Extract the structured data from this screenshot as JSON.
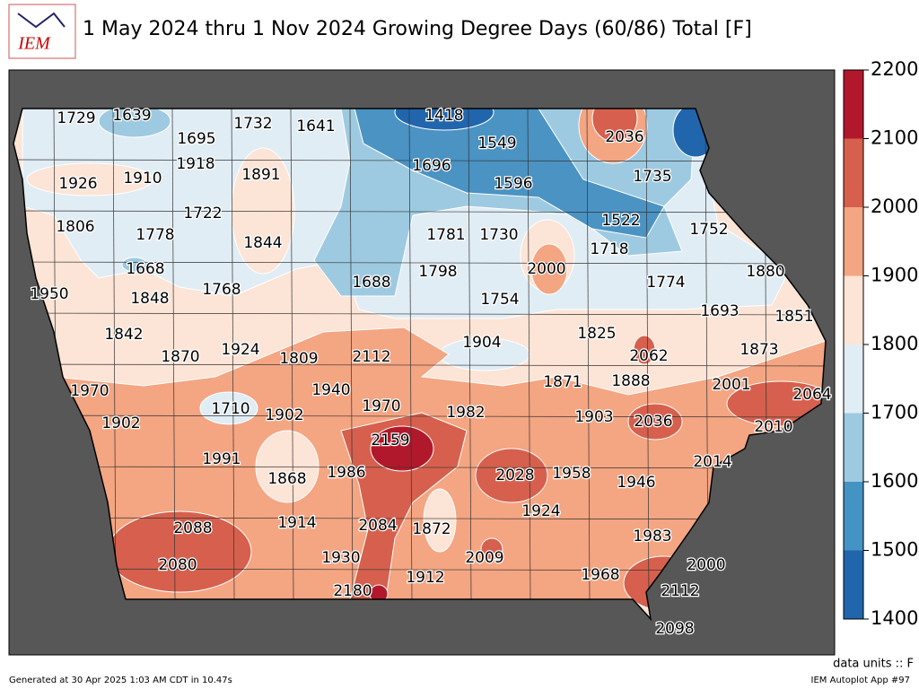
{
  "logo": {
    "text": "IEM"
  },
  "title": "1 May 2024 thru 1 Nov 2024 Growing Degree Days (60/86) Total [F]",
  "station_values": [
    1729,
    1639,
    1695,
    1732,
    1641,
    1418,
    1549,
    2036,
    1918,
    1891,
    1696,
    1926,
    1910,
    1596,
    1735,
    1722,
    1522,
    1806,
    1778,
    1844,
    1781,
    1730,
    1718,
    1752,
    2000,
    1668,
    1798,
    1880,
    1950,
    1768,
    1848,
    1688,
    1774,
    1754,
    1693,
    1851,
    1825,
    1842,
    1904,
    1870,
    1924,
    1809,
    2112,
    2062,
    1873,
    1970,
    1940,
    1871,
    1888,
    2001,
    2064,
    1710,
    1902,
    1970,
    1982,
    1903,
    2036,
    2010,
    1902,
    2159,
    1991,
    2028,
    1958,
    1946,
    2014,
    1868,
    1986,
    1924,
    1914,
    2084,
    1872,
    2088,
    1983,
    1930,
    2009,
    2000,
    2080,
    1912,
    1968,
    2112,
    2180,
    2098
  ],
  "colorbar": {
    "ticks": [
      1400,
      1500,
      1600,
      1700,
      1800,
      1900,
      2000,
      2100,
      2200
    ],
    "colors": [
      "#2166ac",
      "#4393c3",
      "#9ecae1",
      "#e1edf5",
      "#fce4d6",
      "#f4a582",
      "#d6604d",
      "#b2182b"
    ]
  },
  "units_note": "data units :: F",
  "footer_left": "Generated at 30 Apr 2025 1:03 AM CDT in 10.47s",
  "footer_right": "IEM Autoplot App #97"
}
